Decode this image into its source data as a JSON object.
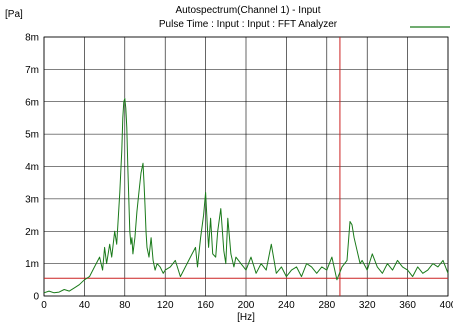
{
  "chart_data": {
    "type": "line",
    "title": "Autospectrum(Channel 1) - Input",
    "subtitle": "Pulse Time : Input : Input : FFT Analyzer",
    "ylabel": "[Pa]",
    "xlabel": "[Hz]",
    "xlim": [
      0,
      400
    ],
    "ylim": [
      0,
      8
    ],
    "x_ticks": [
      0,
      40,
      80,
      120,
      160,
      200,
      240,
      280,
      320,
      360,
      400
    ],
    "y_ticks": [
      0,
      1,
      2,
      3,
      4,
      5,
      6,
      7,
      8
    ],
    "y_tick_labels": [
      "0",
      "1m",
      "2m",
      "3m",
      "4m",
      "5m",
      "6m",
      "7m",
      "8m"
    ],
    "grid": true,
    "legend_position": "top-right",
    "series": [
      {
        "color": "#1a7a1a",
        "x": [
          0,
          5,
          10,
          15,
          20,
          25,
          30,
          35,
          40,
          45,
          50,
          55,
          58,
          60,
          62,
          65,
          67,
          70,
          72,
          75,
          77,
          78,
          79,
          80,
          81,
          82,
          83,
          84,
          85,
          86,
          87,
          88,
          90,
          92,
          94,
          96,
          98,
          99,
          100,
          101,
          102,
          104,
          106,
          108,
          110,
          112,
          115,
          118,
          120,
          125,
          130,
          135,
          140,
          145,
          150,
          152,
          155,
          158,
          160,
          161,
          162,
          163,
          165,
          167,
          170,
          172,
          175,
          178,
          180,
          182,
          185,
          188,
          190,
          195,
          200,
          205,
          210,
          215,
          220,
          225,
          230,
          235,
          240,
          245,
          250,
          255,
          260,
          265,
          270,
          275,
          280,
          285,
          290,
          295,
          300,
          303,
          305,
          307,
          310,
          313,
          315,
          320,
          325,
          330,
          335,
          340,
          345,
          350,
          355,
          360,
          365,
          370,
          375,
          380,
          385,
          390,
          395,
          400
        ],
        "y": [
          0.1,
          0.15,
          0.1,
          0.12,
          0.2,
          0.15,
          0.25,
          0.35,
          0.5,
          0.6,
          0.9,
          1.2,
          0.8,
          1.5,
          1.0,
          1.6,
          1.2,
          2.0,
          1.6,
          3.2,
          4.5,
          5.5,
          6.0,
          6.1,
          5.8,
          5.2,
          4.0,
          3.0,
          2.0,
          1.6,
          1.8,
          1.3,
          1.8,
          2.6,
          3.2,
          3.8,
          4.1,
          3.5,
          2.8,
          2.0,
          1.5,
          1.2,
          1.8,
          1.1,
          0.8,
          1.0,
          0.9,
          0.7,
          0.8,
          0.9,
          1.1,
          0.6,
          0.9,
          1.2,
          1.5,
          0.9,
          1.8,
          2.5,
          3.2,
          2.6,
          2.0,
          1.5,
          2.4,
          1.3,
          1.2,
          2.0,
          2.7,
          1.4,
          1.0,
          2.4,
          1.3,
          0.9,
          1.2,
          1.0,
          0.8,
          1.2,
          0.7,
          1.0,
          0.8,
          1.6,
          0.7,
          0.9,
          0.6,
          0.8,
          0.9,
          0.6,
          1.0,
          0.9,
          0.7,
          0.9,
          0.8,
          1.2,
          0.5,
          0.9,
          1.1,
          2.3,
          2.2,
          1.8,
          1.4,
          1.0,
          1.1,
          0.8,
          1.3,
          0.9,
          0.7,
          1.0,
          0.8,
          1.1,
          0.9,
          0.8,
          0.6,
          0.9,
          0.7,
          0.8,
          1.0,
          0.9,
          1.1,
          0.7
        ]
      }
    ],
    "reference_line": {
      "y": 0.55,
      "color": "#cc2222"
    },
    "marker_line": {
      "x": 293,
      "color": "#cc2222"
    }
  }
}
